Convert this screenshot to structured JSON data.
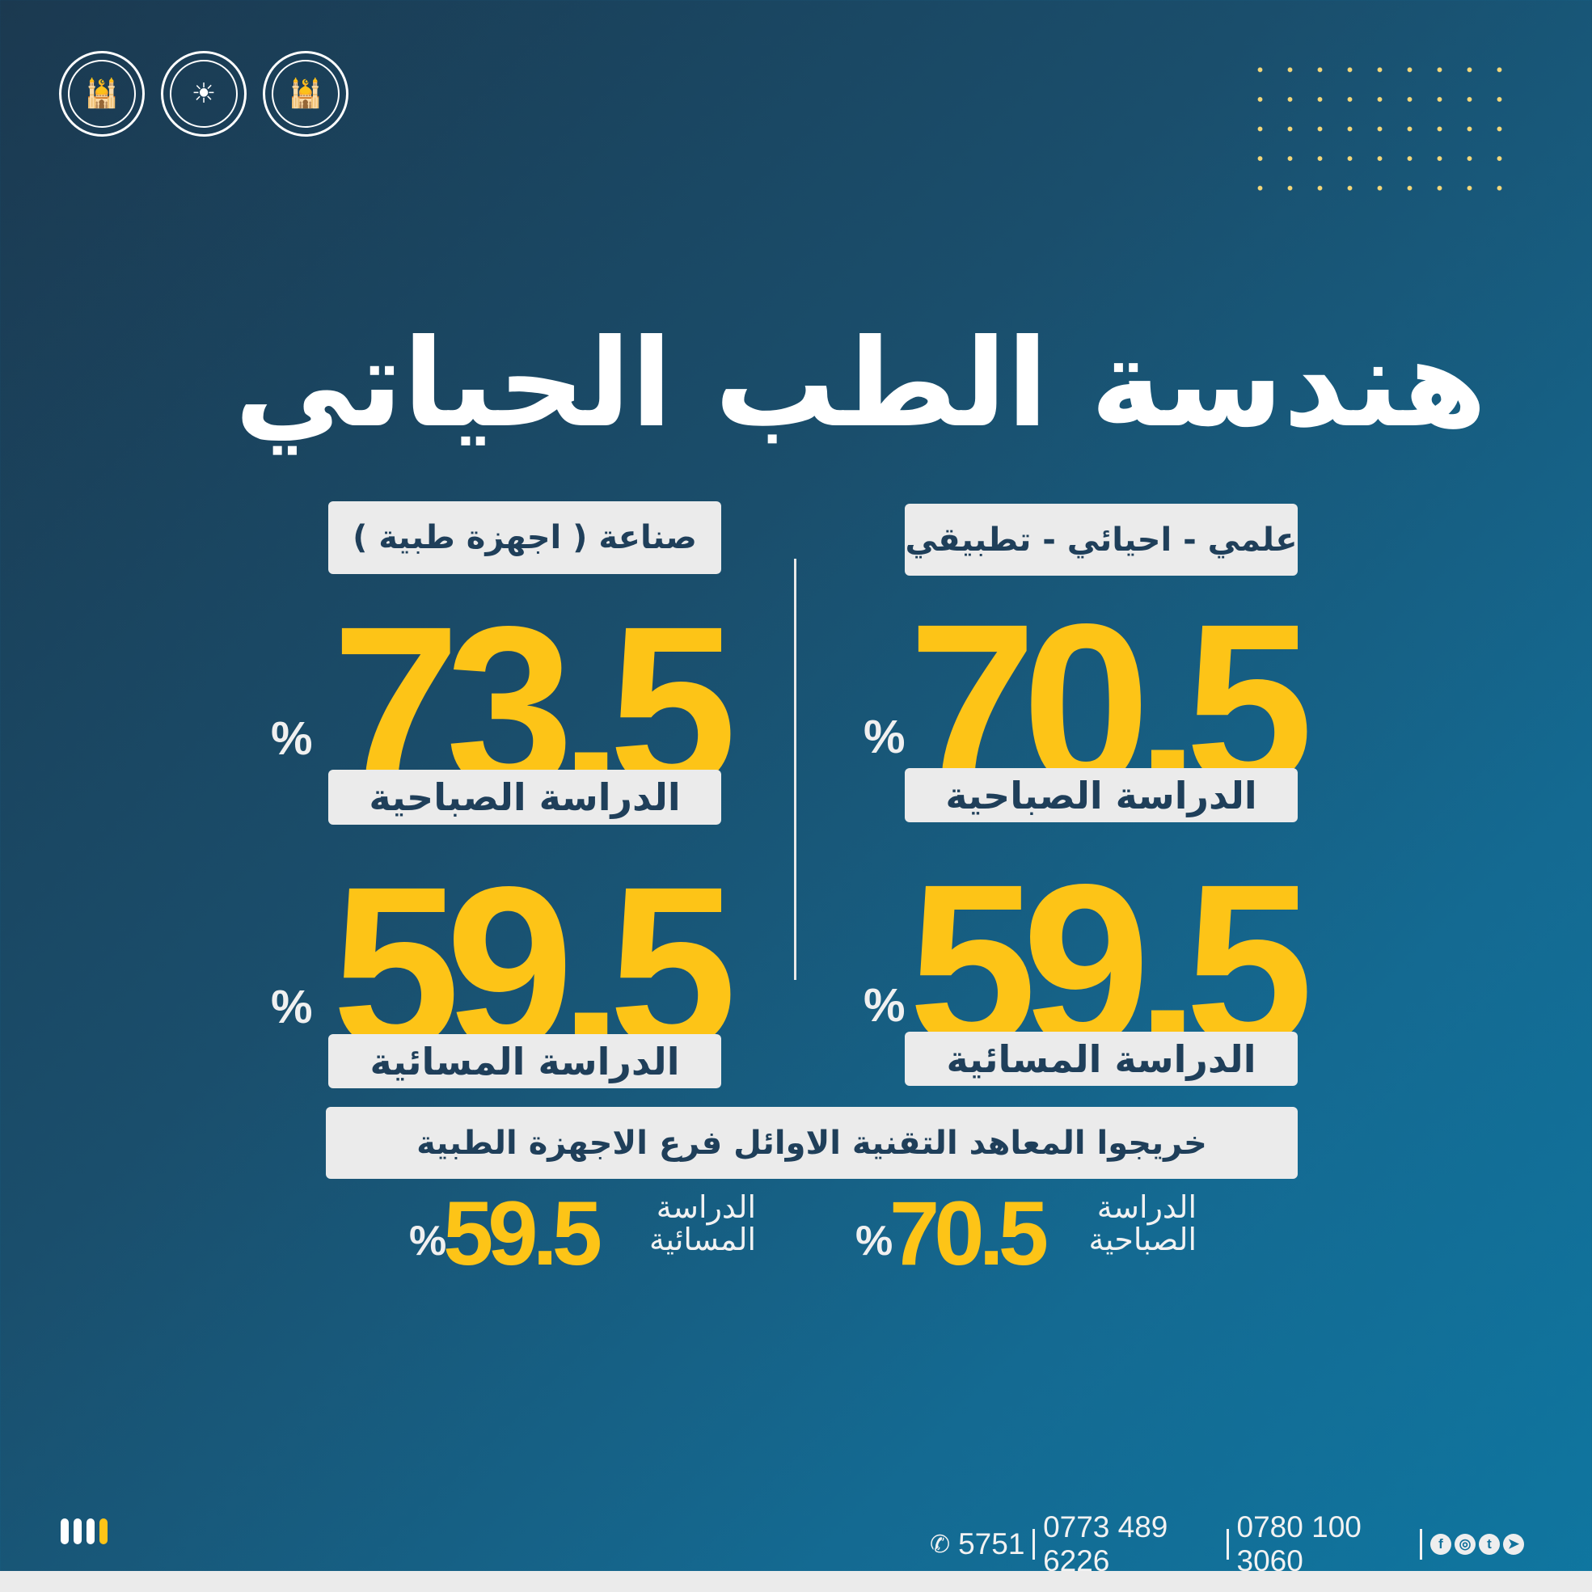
{
  "title": "هندسة الطب الحياتي",
  "columns": [
    {
      "stream": "علمي - احيائي - تطبيقي",
      "morning_value": "70.5",
      "morning_label": "الدراسة الصباحية",
      "evening_value": "59.5",
      "evening_label": "الدراسة المسائية",
      "percent": "%"
    },
    {
      "stream": "صناعة ( اجهزة طبية )",
      "morning_value": "73.5",
      "morning_label": "الدراسة الصباحية",
      "evening_value": "59.5",
      "evening_label": "الدراسة المسائية",
      "percent": "%"
    }
  ],
  "graduates": {
    "heading": "خريجوا المعاهد التقنية الاوائل فرع الاجهزة الطبية",
    "morning_label_1": "الدراسة",
    "morning_label_2": "الصباحية",
    "morning_value": "70.5",
    "evening_label_1": "الدراسة",
    "evening_label_2": "المسائية",
    "evening_value": "59.5",
    "percent": "%"
  },
  "footer": {
    "phones": [
      "5751",
      "0773 489 6226",
      "0780 100 3060"
    ],
    "icons": [
      "phone-icon",
      "facebook-icon",
      "instagram-icon",
      "twitter-icon",
      "telegram-icon"
    ]
  },
  "colors": {
    "accent": "#fdc417",
    "box": "#ebebeb",
    "box_text": "#1f3f5a",
    "bg_start": "#1b3950",
    "bg_end": "#0f76a0"
  }
}
